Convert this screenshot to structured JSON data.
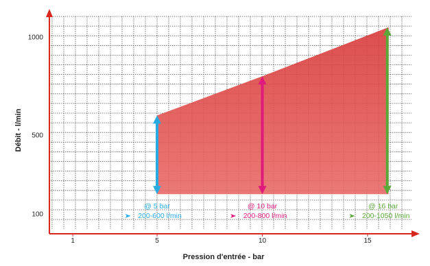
{
  "chart_data": {
    "type": "area",
    "xlabel": "Pression d'entrée - bar",
    "ylabel": "Débit - l/min",
    "x_ticks": [
      1,
      5,
      10,
      15
    ],
    "y_ticks": [
      100,
      500,
      1000
    ],
    "xlim": [
      0,
      17
    ],
    "ylim": [
      100,
      1100
    ],
    "grid": true,
    "area": {
      "x": [
        5,
        10,
        16
      ],
      "upper": [
        600,
        800,
        1050
      ],
      "lower": [
        200,
        200,
        200
      ],
      "color": "#e05050"
    },
    "annotations": [
      {
        "x": 5,
        "line1": "@ 5 bar",
        "line2": "200-600 l/min",
        "color": "#29abe2",
        "from": 200,
        "to": 600
      },
      {
        "x": 10,
        "line1": "@ 10 bar",
        "line2": "200-800 l/min",
        "color": "#e0197d",
        "from": 200,
        "to": 800
      },
      {
        "x": 16,
        "line1": "@ 16 bar",
        "line2": "200-1050 l/min",
        "color": "#5aa838",
        "from": 200,
        "to": 1050
      }
    ],
    "axis_color": "#d9261c"
  }
}
